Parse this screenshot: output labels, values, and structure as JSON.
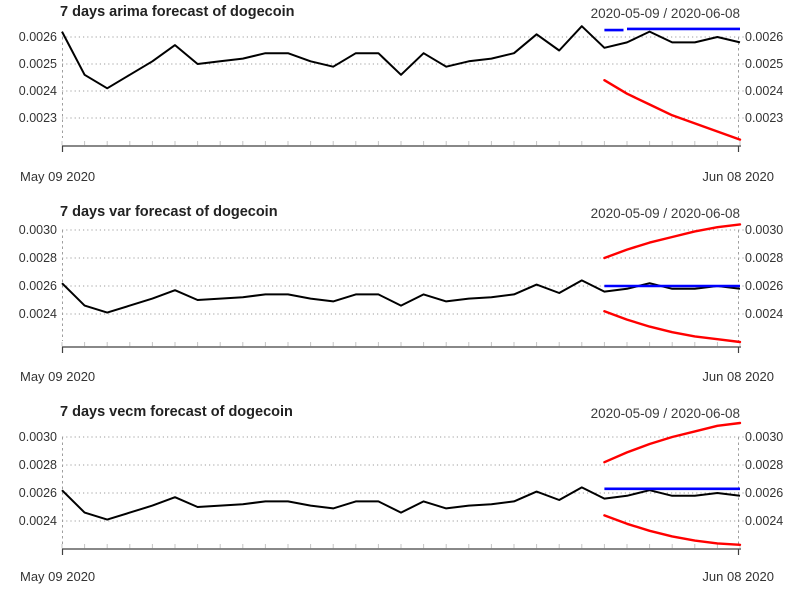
{
  "figure": {
    "background": "#ffffff"
  },
  "colors": {
    "actual_line": "#000000",
    "forecast_line": "#0000ff",
    "confidence_line": "#ff0000",
    "gridline": "#9e9e9e",
    "axis": "#404040",
    "minor_tick": "#c4c4c4",
    "title_text": "#222222",
    "subtitle_text": "#3c3c3c",
    "tick_text": "#333333"
  },
  "chart_data": [
    {
      "type": "line",
      "title": "7 days arima forecast of dogecoin",
      "subtitle": "2020-05-09 / 2020-06-08",
      "xlabel_left": "May 09 2020",
      "xlabel_right": "Jun 08 2020",
      "grid": true,
      "legend_position": "none",
      "ylim": [
        0.0022,
        0.00265
      ],
      "yticks": [
        "0.0026",
        "0.0025",
        "0.0024",
        "0.0023"
      ],
      "forecast_start": "2020-06-02",
      "x_dates": [
        "2020-05-09",
        "2020-05-10",
        "2020-05-11",
        "2020-05-12",
        "2020-05-13",
        "2020-05-14",
        "2020-05-15",
        "2020-05-16",
        "2020-05-17",
        "2020-05-18",
        "2020-05-19",
        "2020-05-20",
        "2020-05-21",
        "2020-05-22",
        "2020-05-23",
        "2020-05-24",
        "2020-05-25",
        "2020-05-26",
        "2020-05-27",
        "2020-05-28",
        "2020-05-29",
        "2020-05-30",
        "2020-05-31",
        "2020-06-01",
        "2020-06-02",
        "2020-06-03",
        "2020-06-04",
        "2020-06-05",
        "2020-06-06",
        "2020-06-07",
        "2020-06-08"
      ],
      "series": [
        {
          "name": "actual",
          "color": "#000000",
          "values": [
            0.00262,
            0.00246,
            0.00241,
            0.00246,
            0.00251,
            0.00257,
            0.0025,
            0.00251,
            0.00252,
            0.00254,
            0.00254,
            0.00251,
            0.00249,
            0.00254,
            0.00254,
            0.00246,
            0.00254,
            0.00249,
            0.00251,
            0.00252,
            0.00254,
            0.00261,
            0.00255,
            0.00264,
            0.00256,
            0.00258,
            0.00262,
            0.00258,
            0.00258,
            0.0026,
            0.00258
          ]
        },
        {
          "name": "forecast_mean",
          "color": "#0000ff",
          "values": [
            0.00263,
            0.00263,
            0.00263,
            0.00263,
            0.00263,
            0.00263,
            0.00263
          ]
        },
        {
          "name": "forecast_lower",
          "color": "#ff0000",
          "values": [
            0.00244,
            0.00239,
            0.00235,
            0.00231,
            0.00228,
            0.00225,
            0.00222
          ]
        }
      ]
    },
    {
      "type": "line",
      "title": "7 days var forecast of dogecoin",
      "subtitle": "2020-05-09 / 2020-06-08",
      "xlabel_left": "May 09 2020",
      "xlabel_right": "Jun 08 2020",
      "grid": true,
      "legend_position": "none",
      "ylim": [
        0.0022,
        0.00306
      ],
      "yticks": [
        "0.0030",
        "0.0028",
        "0.0026",
        "0.0024"
      ],
      "forecast_start": "2020-06-02",
      "x_dates": [
        "2020-05-09",
        "2020-05-10",
        "2020-05-11",
        "2020-05-12",
        "2020-05-13",
        "2020-05-14",
        "2020-05-15",
        "2020-05-16",
        "2020-05-17",
        "2020-05-18",
        "2020-05-19",
        "2020-05-20",
        "2020-05-21",
        "2020-05-22",
        "2020-05-23",
        "2020-05-24",
        "2020-05-25",
        "2020-05-26",
        "2020-05-27",
        "2020-05-28",
        "2020-05-29",
        "2020-05-30",
        "2020-05-31",
        "2020-06-01",
        "2020-06-02",
        "2020-06-03",
        "2020-06-04",
        "2020-06-05",
        "2020-06-06",
        "2020-06-07",
        "2020-06-08"
      ],
      "series": [
        {
          "name": "actual",
          "color": "#000000",
          "values": [
            0.00262,
            0.00246,
            0.00241,
            0.00246,
            0.00251,
            0.00257,
            0.0025,
            0.00251,
            0.00252,
            0.00254,
            0.00254,
            0.00251,
            0.00249,
            0.00254,
            0.00254,
            0.00246,
            0.00254,
            0.00249,
            0.00251,
            0.00252,
            0.00254,
            0.00261,
            0.00255,
            0.00264,
            0.00256,
            0.00258,
            0.00262,
            0.00258,
            0.00258,
            0.0026,
            0.00258
          ]
        },
        {
          "name": "forecast_mean",
          "color": "#0000ff",
          "values": [
            0.0026,
            0.0026,
            0.0026,
            0.0026,
            0.0026,
            0.0026,
            0.0026
          ]
        },
        {
          "name": "forecast_upper",
          "color": "#ff0000",
          "values": [
            0.0028,
            0.00286,
            0.00291,
            0.00295,
            0.00299,
            0.00302,
            0.00304
          ]
        },
        {
          "name": "forecast_lower",
          "color": "#ff0000",
          "values": [
            0.00242,
            0.00236,
            0.00231,
            0.00227,
            0.00224,
            0.00222,
            0.0022
          ]
        }
      ]
    },
    {
      "type": "line",
      "title": "7 days vecm forecast of dogecoin",
      "subtitle": "2020-05-09 / 2020-06-08",
      "xlabel_left": "May 09 2020",
      "xlabel_right": "Jun 08 2020",
      "grid": true,
      "legend_position": "none",
      "ylim": [
        0.0022,
        0.00312
      ],
      "yticks": [
        "0.0030",
        "0.0028",
        "0.0026",
        "0.0024"
      ],
      "forecast_start": "2020-06-02",
      "x_dates": [
        "2020-05-09",
        "2020-05-10",
        "2020-05-11",
        "2020-05-12",
        "2020-05-13",
        "2020-05-14",
        "2020-05-15",
        "2020-05-16",
        "2020-05-17",
        "2020-05-18",
        "2020-05-19",
        "2020-05-20",
        "2020-05-21",
        "2020-05-22",
        "2020-05-23",
        "2020-05-24",
        "2020-05-25",
        "2020-05-26",
        "2020-05-27",
        "2020-05-28",
        "2020-05-29",
        "2020-05-30",
        "2020-05-31",
        "2020-06-01",
        "2020-06-02",
        "2020-06-03",
        "2020-06-04",
        "2020-06-05",
        "2020-06-06",
        "2020-06-07",
        "2020-06-08"
      ],
      "series": [
        {
          "name": "actual",
          "color": "#000000",
          "values": [
            0.00262,
            0.00246,
            0.00241,
            0.00246,
            0.00251,
            0.00257,
            0.0025,
            0.00251,
            0.00252,
            0.00254,
            0.00254,
            0.00251,
            0.00249,
            0.00254,
            0.00254,
            0.00246,
            0.00254,
            0.00249,
            0.00251,
            0.00252,
            0.00254,
            0.00261,
            0.00255,
            0.00264,
            0.00256,
            0.00258,
            0.00262,
            0.00258,
            0.00258,
            0.0026,
            0.00258
          ]
        },
        {
          "name": "forecast_mean",
          "color": "#0000ff",
          "values": [
            0.00263,
            0.00263,
            0.00263,
            0.00263,
            0.00263,
            0.00263,
            0.00263
          ]
        },
        {
          "name": "forecast_upper",
          "color": "#ff0000",
          "values": [
            0.00282,
            0.00289,
            0.00295,
            0.003,
            0.00304,
            0.00308,
            0.0031
          ]
        },
        {
          "name": "forecast_lower",
          "color": "#ff0000",
          "values": [
            0.00244,
            0.00238,
            0.00233,
            0.00229,
            0.00226,
            0.00224,
            0.00223
          ]
        }
      ]
    }
  ]
}
